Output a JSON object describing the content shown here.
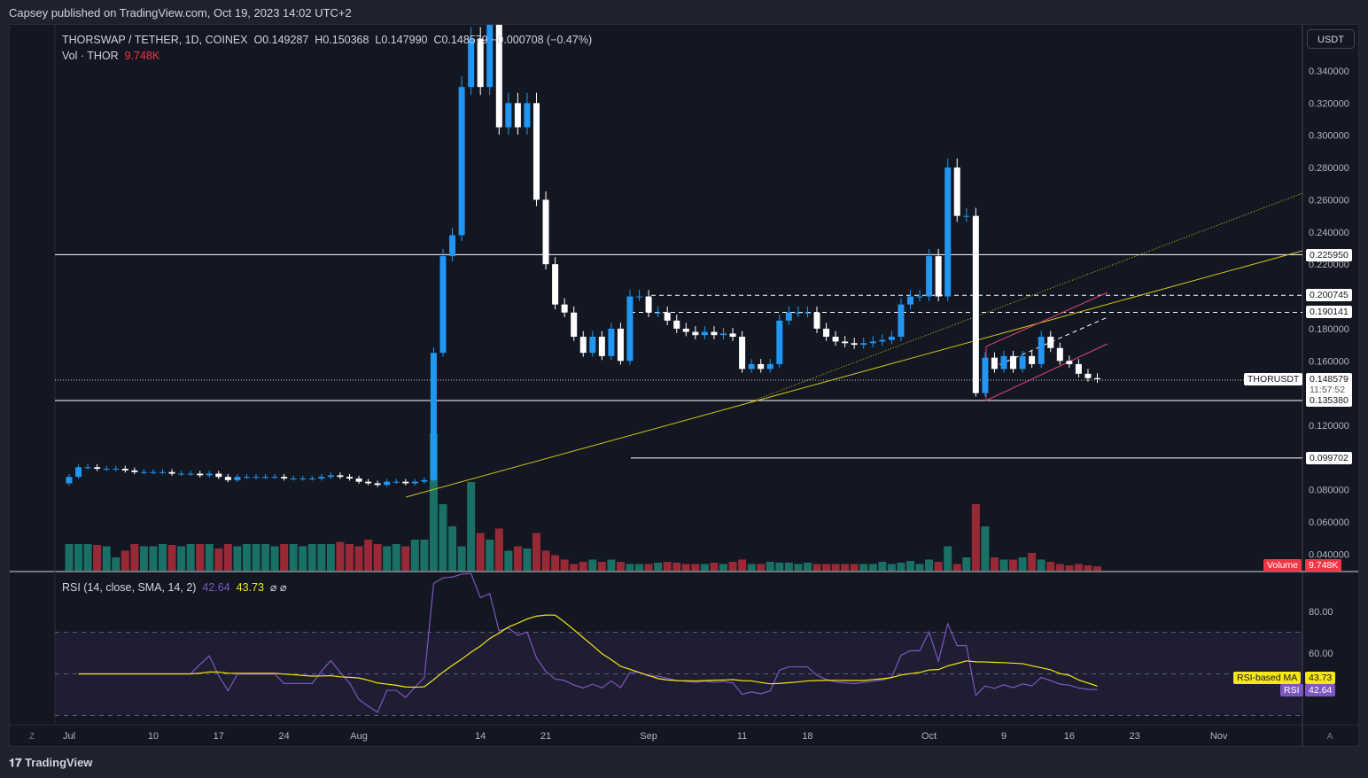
{
  "publisher_line": "Capsey published on TradingView.com, Oct 19, 2023 14:02 UTC+2",
  "legend": {
    "symbol": "THORSWAP / TETHER, 1D, COINEX",
    "open": "O0.149287",
    "high": "H0.150368",
    "low": "L0.147990",
    "close": "C0.148579",
    "change": "−0.000708 (−0.47%)",
    "vol_label": "Vol · THOR",
    "vol_value": "9.748K"
  },
  "rsi_legend": {
    "label": "RSI (14, close, SMA, 14, 2)",
    "rsi": "42.64",
    "ma": "43.73",
    "icons": "⌀ ⌀"
  },
  "currency_button": "USDT",
  "price_ticks": [
    "0.340000",
    "0.320000",
    "0.300000",
    "0.280000",
    "0.260000",
    "0.240000",
    "0.220000",
    "0.180000",
    "0.160000",
    "0.120000",
    "0.080000",
    "0.060000",
    "0.040000"
  ],
  "rsi_ticks": [
    "80.00",
    "60.00"
  ],
  "time_ticks": [
    {
      "label": "Jul",
      "day": 0
    },
    {
      "label": "10",
      "day": 9
    },
    {
      "label": "17",
      "day": 16
    },
    {
      "label": "24",
      "day": 23
    },
    {
      "label": "Aug",
      "day": 31
    },
    {
      "label": "14",
      "day": 44
    },
    {
      "label": "21",
      "day": 51
    },
    {
      "label": "Sep",
      "day": 62
    },
    {
      "label": "11",
      "day": 72
    },
    {
      "label": "18",
      "day": 79
    },
    {
      "label": "Oct",
      "day": 92
    },
    {
      "label": "9",
      "day": 100
    },
    {
      "label": "16",
      "day": 107
    },
    {
      "label": "23",
      "day": 114
    },
    {
      "label": "Nov",
      "day": 123
    }
  ],
  "levels": {
    "l1": "0.225950",
    "l2": "0.200745",
    "l3": "0.190141",
    "l4": "0.135380",
    "l5": "0.099702"
  },
  "last": {
    "symbol": "THORUSDT",
    "price": "0.148579",
    "countdown": "11:57:52"
  },
  "volume_tag": {
    "label": "Volume",
    "value": "9.748K"
  },
  "rsi_tags": {
    "ma_label": "RSI-based MA",
    "ma": "43.73",
    "rsi_label": "RSI",
    "rsi": "42.64"
  },
  "footer": "TradingView",
  "colors": {
    "up": "#2196f3",
    "down": "#ffffff",
    "vol_up": "#22ab94",
    "vol_down": "#f23645",
    "rsi": "#7e57c2",
    "ma": "#f5e617",
    "trend": "#d4c21a",
    "channel": "#e0407a"
  },
  "chart_data": {
    "type": "candlestick",
    "start": "Jul 1",
    "ylim": [
      0.03,
      0.37
    ],
    "closes": [
      0.088,
      0.094,
      0.094,
      0.093,
      0.093,
      0.093,
      0.092,
      0.091,
      0.091,
      0.091,
      0.091,
      0.09,
      0.09,
      0.09,
      0.089,
      0.09,
      0.088,
      0.086,
      0.088,
      0.088,
      0.088,
      0.088,
      0.088,
      0.087,
      0.087,
      0.087,
      0.087,
      0.088,
      0.089,
      0.088,
      0.087,
      0.085,
      0.084,
      0.083,
      0.085,
      0.085,
      0.084,
      0.085,
      0.086,
      0.165,
      0.225,
      0.238,
      0.33,
      0.36,
      0.33,
      0.37,
      0.305,
      0.32,
      0.305,
      0.32,
      0.26,
      0.22,
      0.195,
      0.19,
      0.175,
      0.165,
      0.175,
      0.163,
      0.18,
      0.16,
      0.2,
      0.2,
      0.19,
      0.19,
      0.185,
      0.18,
      0.178,
      0.176,
      0.178,
      0.176,
      0.177,
      0.175,
      0.155,
      0.158,
      0.155,
      0.158,
      0.185,
      0.19,
      0.19,
      0.19,
      0.18,
      0.175,
      0.172,
      0.171,
      0.17,
      0.171,
      0.172,
      0.173,
      0.175,
      0.195,
      0.2,
      0.2,
      0.225,
      0.2,
      0.28,
      0.25,
      0.25,
      0.14,
      0.162,
      0.155,
      0.163,
      0.155,
      0.163,
      0.158,
      0.175,
      0.168,
      0.16,
      0.158,
      0.152,
      0.1493,
      0.148579
    ],
    "volumes_k": [
      60,
      60,
      60,
      58,
      55,
      30,
      45,
      60,
      55,
      55,
      60,
      58,
      55,
      60,
      60,
      60,
      50,
      60,
      55,
      60,
      60,
      60,
      55,
      60,
      60,
      55,
      60,
      60,
      60,
      65,
      60,
      55,
      70,
      60,
      55,
      60,
      55,
      70,
      70,
      310,
      150,
      100,
      55,
      200,
      85,
      70,
      95,
      45,
      55,
      50,
      85,
      45,
      35,
      25,
      15,
      20,
      25,
      20,
      25,
      20,
      15,
      15,
      15,
      18,
      20,
      18,
      15,
      15,
      15,
      18,
      15,
      20,
      25,
      15,
      15,
      20,
      18,
      18,
      15,
      18,
      15,
      15,
      15,
      15,
      15,
      15,
      15,
      20,
      15,
      18,
      22,
      15,
      25,
      20,
      55,
      15,
      30,
      150,
      100,
      30,
      25,
      25,
      30,
      40,
      25,
      20,
      15,
      12,
      15,
      12,
      9.748
    ]
  }
}
